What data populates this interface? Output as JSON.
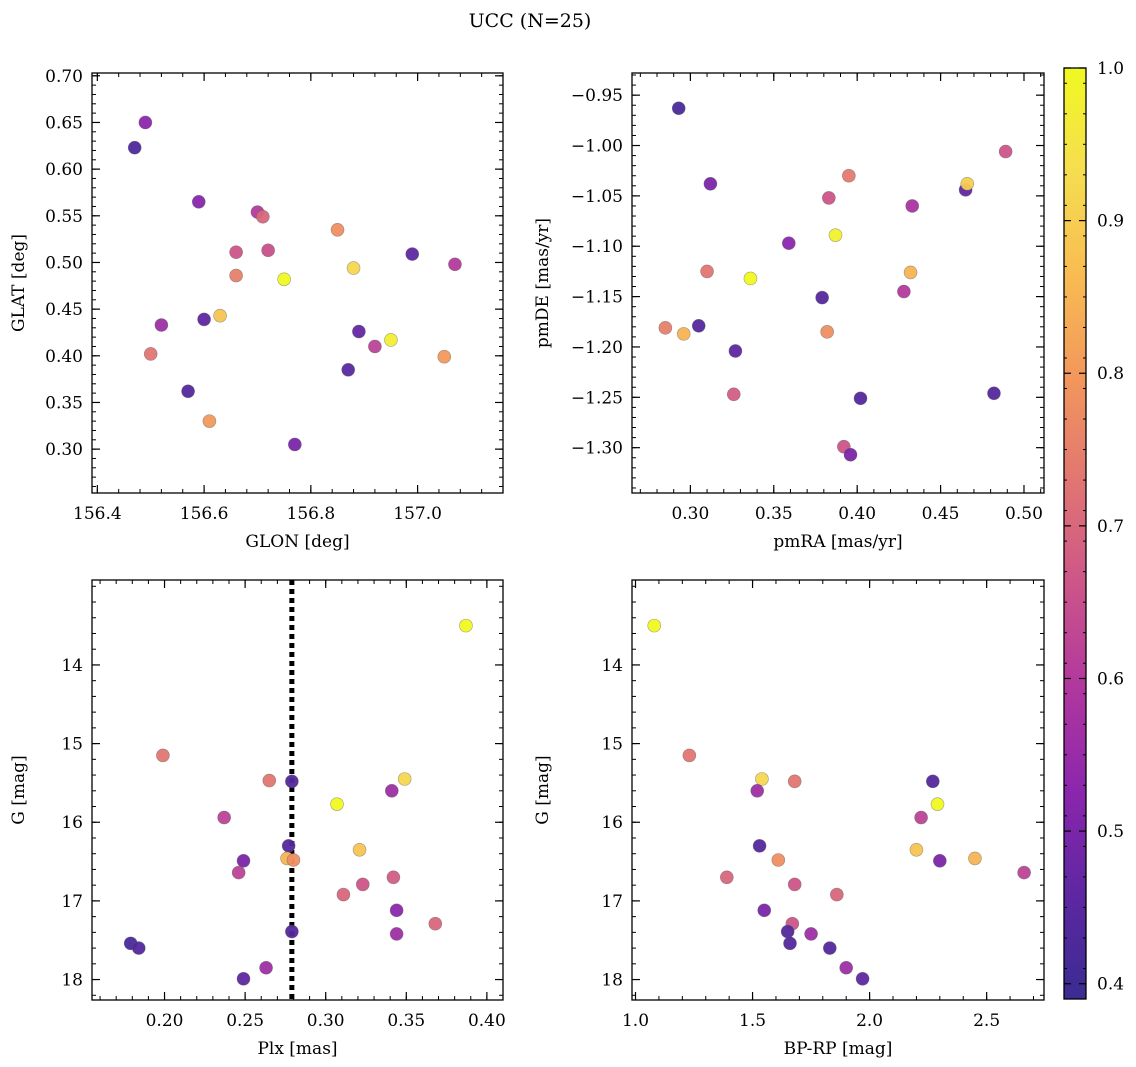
{
  "title": "UCC (N=25)",
  "colorbar": {
    "range": [
      0.39,
      1.0
    ],
    "ticks": [
      "0.4",
      "0.5",
      "0.6",
      "0.7",
      "0.8",
      "0.9",
      "1.0"
    ],
    "tick_values": [
      0.4,
      0.5,
      0.6,
      0.7,
      0.8,
      0.9,
      1.0
    ],
    "colormap": "plasma",
    "colormap_stops": [
      "#3a2c92",
      "#5d27a1",
      "#8b26ad",
      "#b0379e",
      "#cc5589",
      "#e17572",
      "#f2975c",
      "#f8bc52",
      "#f6dd50",
      "#f0f921"
    ]
  },
  "chart_data": [
    {
      "type": "scatter",
      "xlabel": "GLON [deg]",
      "ylabel": "GLAT [deg]",
      "xlim": [
        156.39,
        157.16
      ],
      "ylim": [
        0.253,
        0.703
      ],
      "xticks": [
        "156.4",
        "156.6",
        "156.8",
        "157.0"
      ],
      "xtick_values": [
        156.4,
        156.6,
        156.8,
        157.0
      ],
      "yticks": [
        "0.30",
        "0.35",
        "0.40",
        "0.45",
        "0.50",
        "0.55",
        "0.60",
        "0.65",
        "0.70"
      ],
      "ytick_values": [
        0.3,
        0.35,
        0.4,
        0.45,
        0.5,
        0.55,
        0.6,
        0.65,
        0.7
      ],
      "x": [
        156.49,
        156.47,
        156.59,
        156.52,
        156.6,
        156.5,
        156.57,
        156.61,
        156.63,
        156.66,
        156.66,
        156.7,
        156.71,
        156.72,
        156.75,
        156.77,
        156.85,
        156.87,
        156.88,
        156.89,
        156.92,
        156.95,
        156.99,
        157.05,
        157.07
      ],
      "y": [
        0.65,
        0.623,
        0.565,
        0.433,
        0.439,
        0.402,
        0.362,
        0.33,
        0.443,
        0.511,
        0.486,
        0.554,
        0.549,
        0.513,
        0.482,
        0.305,
        0.535,
        0.385,
        0.494,
        0.426,
        0.41,
        0.417,
        0.509,
        0.399,
        0.498
      ],
      "c": [
        0.53,
        0.43,
        0.52,
        0.56,
        0.46,
        0.73,
        0.44,
        0.8,
        0.88,
        0.66,
        0.75,
        0.6,
        0.7,
        0.65,
        1.0,
        0.5,
        0.78,
        0.45,
        0.92,
        0.47,
        0.62,
        0.97,
        0.46,
        0.8,
        0.6
      ],
      "reference_lines": []
    },
    {
      "type": "scatter",
      "xlabel": "pmRA [mas/yr]",
      "ylabel": "pmDE [mas/yr]",
      "xlim": [
        0.265,
        0.512
      ],
      "ylim": [
        -1.345,
        -0.928
      ],
      "xticks": [
        "0.30",
        "0.35",
        "0.40",
        "0.45",
        "0.50"
      ],
      "xtick_values": [
        0.3,
        0.35,
        0.4,
        0.45,
        0.5
      ],
      "yticks": [
        "−1.30",
        "−1.25",
        "−1.20",
        "−1.15",
        "−1.10",
        "−1.05",
        "−1.00",
        "−0.95"
      ],
      "ytick_values": [
        -1.3,
        -1.25,
        -1.2,
        -1.15,
        -1.1,
        -1.05,
        -1.0,
        -0.95
      ],
      "x": [
        0.293,
        0.312,
        0.31,
        0.285,
        0.296,
        0.305,
        0.327,
        0.326,
        0.336,
        0.359,
        0.379,
        0.383,
        0.382,
        0.387,
        0.395,
        0.392,
        0.396,
        0.402,
        0.428,
        0.433,
        0.432,
        0.465,
        0.466,
        0.482,
        0.489
      ],
      "y": [
        -0.963,
        -1.038,
        -1.125,
        -1.181,
        -1.187,
        -1.179,
        -1.204,
        -1.247,
        -1.132,
        -1.097,
        -1.151,
        -1.052,
        -1.185,
        -1.089,
        -1.03,
        -1.299,
        -1.307,
        -1.251,
        -1.145,
        -1.06,
        -1.126,
        -1.044,
        -1.038,
        -1.246,
        -1.006
      ],
      "c": [
        0.42,
        0.5,
        0.73,
        0.75,
        0.85,
        0.44,
        0.46,
        0.68,
        1.0,
        0.53,
        0.44,
        0.66,
        0.78,
        0.98,
        0.74,
        0.66,
        0.5,
        0.44,
        0.6,
        0.58,
        0.85,
        0.46,
        0.9,
        0.44,
        0.66
      ],
      "reference_lines": []
    },
    {
      "type": "scatter",
      "xlabel": "Plx [mas]",
      "ylabel": "G [mag]",
      "xlim": [
        0.155,
        0.41
      ],
      "ylim": [
        18.26,
        12.92
      ],
      "y_inverted": true,
      "xticks": [
        "0.20",
        "0.25",
        "0.30",
        "0.35",
        "0.40"
      ],
      "xtick_values": [
        0.2,
        0.25,
        0.3,
        0.35,
        0.4
      ],
      "yticks": [
        "14",
        "15",
        "16",
        "17",
        "18"
      ],
      "ytick_values": [
        14,
        15,
        16,
        17,
        18
      ],
      "x": [
        0.387,
        0.199,
        0.265,
        0.279,
        0.349,
        0.307,
        0.341,
        0.237,
        0.321,
        0.277,
        0.249,
        0.246,
        0.276,
        0.28,
        0.342,
        0.323,
        0.311,
        0.344,
        0.368,
        0.344,
        0.279,
        0.179,
        0.184,
        0.249,
        0.263
      ],
      "y": [
        13.5,
        15.15,
        15.47,
        15.48,
        15.45,
        15.77,
        15.6,
        15.94,
        16.35,
        16.3,
        16.49,
        16.64,
        16.46,
        16.48,
        16.7,
        16.79,
        16.92,
        17.12,
        17.29,
        17.42,
        17.39,
        17.54,
        17.6,
        17.99,
        17.85
      ],
      "c": [
        1.0,
        0.73,
        0.73,
        0.44,
        0.92,
        1.0,
        0.56,
        0.62,
        0.88,
        0.44,
        0.5,
        0.62,
        0.85,
        0.78,
        0.68,
        0.66,
        0.7,
        0.53,
        0.7,
        0.56,
        0.44,
        0.42,
        0.44,
        0.46,
        0.56
      ],
      "reference_lines": [
        {
          "orientation": "vertical",
          "value": 0.279,
          "style": "dotted",
          "color": "#000000"
        }
      ]
    },
    {
      "type": "scatter",
      "xlabel": "BP-RP [mag]",
      "ylabel": "G [mag]",
      "xlim": [
        0.985,
        2.745
      ],
      "ylim": [
        18.26,
        12.92
      ],
      "y_inverted": true,
      "xticks": [
        "1.0",
        "1.5",
        "2.0",
        "2.5"
      ],
      "xtick_values": [
        1.0,
        1.5,
        2.0,
        2.5
      ],
      "yticks": [
        "14",
        "15",
        "16",
        "17",
        "18"
      ],
      "ytick_values": [
        14,
        15,
        16,
        17,
        18
      ],
      "x": [
        1.08,
        1.23,
        1.54,
        1.68,
        1.52,
        1.53,
        2.27,
        2.29,
        2.22,
        2.2,
        2.3,
        2.45,
        1.61,
        1.39,
        1.68,
        1.86,
        1.55,
        1.67,
        1.65,
        1.75,
        1.66,
        1.83,
        1.9,
        1.97,
        2.66
      ],
      "y": [
        13.5,
        15.15,
        15.45,
        15.48,
        15.6,
        16.3,
        15.48,
        15.77,
        15.94,
        16.35,
        16.49,
        16.46,
        16.48,
        16.7,
        16.79,
        16.92,
        17.12,
        17.29,
        17.39,
        17.42,
        17.54,
        17.6,
        17.85,
        17.99,
        16.64
      ],
      "c": [
        1.0,
        0.73,
        0.92,
        0.73,
        0.56,
        0.44,
        0.44,
        1.0,
        0.62,
        0.88,
        0.5,
        0.85,
        0.78,
        0.7,
        0.66,
        0.7,
        0.5,
        0.66,
        0.44,
        0.56,
        0.44,
        0.44,
        0.56,
        0.46,
        0.62
      ],
      "reference_lines": []
    }
  ]
}
